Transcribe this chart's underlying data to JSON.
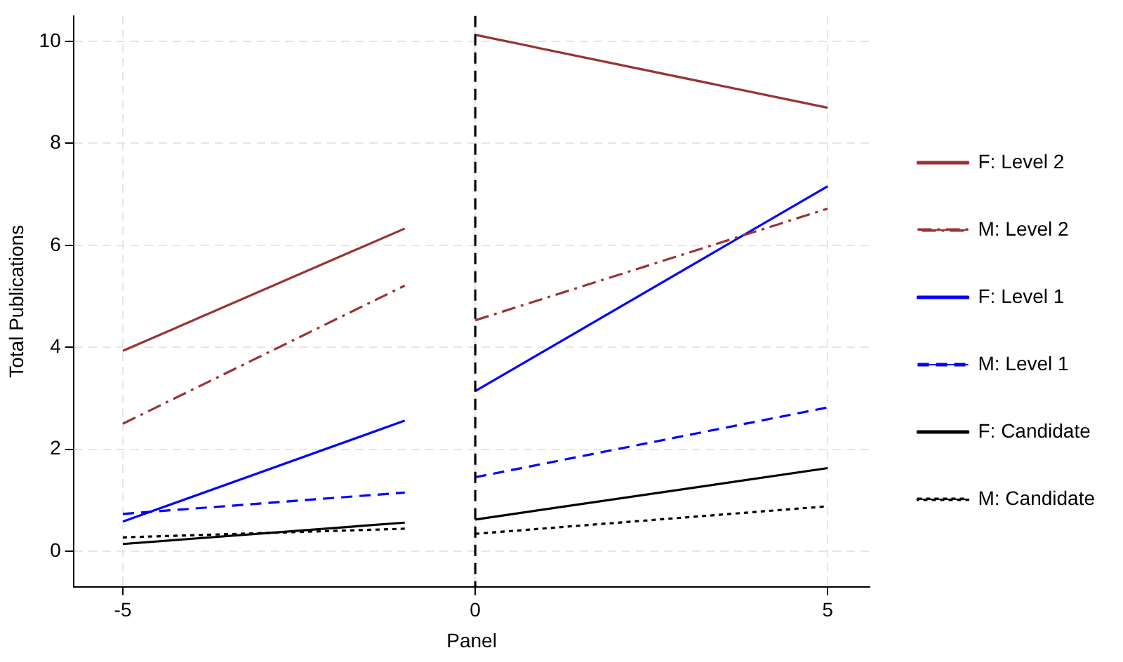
{
  "chart_data": {
    "type": "line",
    "xlabel": "Panel",
    "ylabel": "Total Publications",
    "x": [
      -5,
      -1,
      -0.5,
      0,
      5
    ],
    "series": [
      {
        "name": "F: Level 2",
        "color": "#993333",
        "line_style": "solid",
        "values": [
          3.93,
          6.33,
          null,
          10.13,
          8.7
        ]
      },
      {
        "name": "M: Level 2",
        "color": "#993333",
        "line_style": "dashdot",
        "values": [
          2.5,
          5.21,
          null,
          4.53,
          6.72
        ]
      },
      {
        "name": "F: Level 1",
        "color": "#0000ff",
        "line_style": "solid",
        "values": [
          0.58,
          2.56,
          null,
          3.14,
          7.16
        ]
      },
      {
        "name": "M: Level 1",
        "color": "#0000ff",
        "line_style": "dashed",
        "values": [
          0.73,
          1.15,
          null,
          1.45,
          2.82
        ]
      },
      {
        "name": "F: Candidate",
        "color": "#000000",
        "line_style": "solid",
        "values": [
          0.14,
          0.56,
          null,
          0.62,
          1.63
        ]
      },
      {
        "name": "M: Candidate",
        "color": "#000000",
        "line_style": "dotted",
        "values": [
          0.27,
          0.44,
          null,
          0.34,
          0.88
        ]
      }
    ],
    "xlim": [
      -5.7,
      5.6
    ],
    "xticks": [
      -5,
      0,
      5
    ],
    "ylim": [
      -0.7,
      10.5
    ],
    "yticks": [
      0,
      2,
      4,
      6,
      8,
      10
    ],
    "ref_lines": [
      {
        "axis": "x",
        "value": 0,
        "color": "#000000",
        "line_style": "dashed"
      }
    ],
    "grid": true,
    "legend": "right",
    "marker": "none"
  }
}
